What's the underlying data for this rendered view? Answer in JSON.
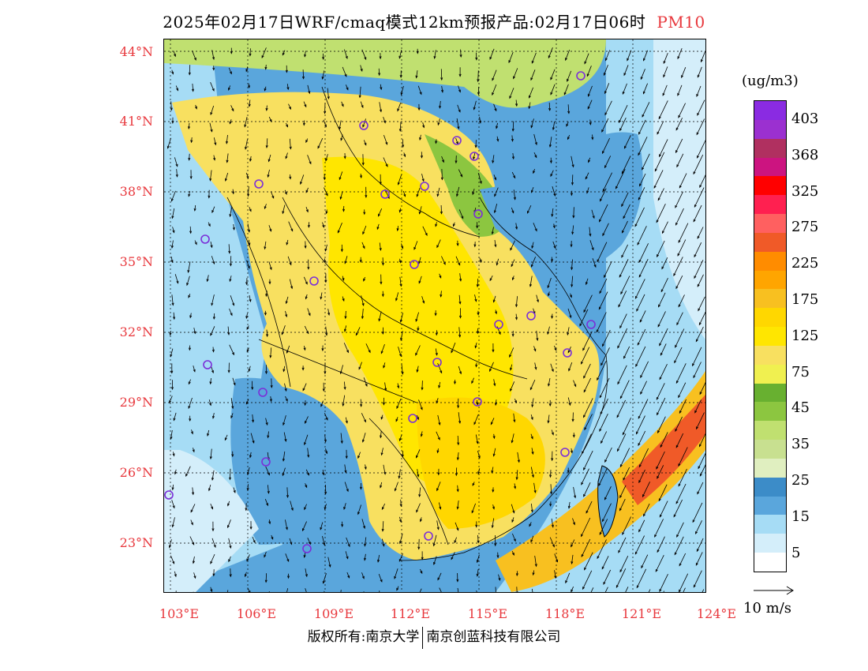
{
  "title": {
    "main": "2025年02月17日WRF/cmaq模式12km预报产品:02月17日06时",
    "pollutant": "PM10"
  },
  "map": {
    "lat_labels": [
      "44°N",
      "41°N",
      "38°N",
      "35°N",
      "32°N",
      "29°N",
      "26°N",
      "23°N"
    ],
    "lon_labels": [
      "103°E",
      "106°E",
      "109°E",
      "112°E",
      "115°E",
      "118°E",
      "121°E",
      "124°E"
    ],
    "label_color": "#e8383d",
    "marker_color": "#7b2fd8"
  },
  "legend": {
    "unit": "(ug/m3)",
    "labels": [
      "403",
      "368",
      "325",
      "275",
      "225",
      "175",
      "125",
      "75",
      "45",
      "35",
      "25",
      "15",
      "5"
    ],
    "colors": [
      "#8a2be2",
      "#9b30d0",
      "#b03060",
      "#cc1480",
      "#ff0000",
      "#ff2050",
      "#ff6060",
      "#f05a28",
      "#ff8c00",
      "#ffa500",
      "#f8c020",
      "#ffd700",
      "#ffe600",
      "#f8e060",
      "#f0f050",
      "#68b030",
      "#8cc640",
      "#c0e070",
      "#c8e090",
      "#e0efc0",
      "#3c8cc8",
      "#5aa6dc",
      "#a6dcf5",
      "#d4eefa",
      "#ffffff"
    ]
  },
  "vector_legend": {
    "label": "10 m/s"
  },
  "footer": {
    "left": "版权所有:南京大学",
    "right": "南京创蓝科技有限公司"
  }
}
